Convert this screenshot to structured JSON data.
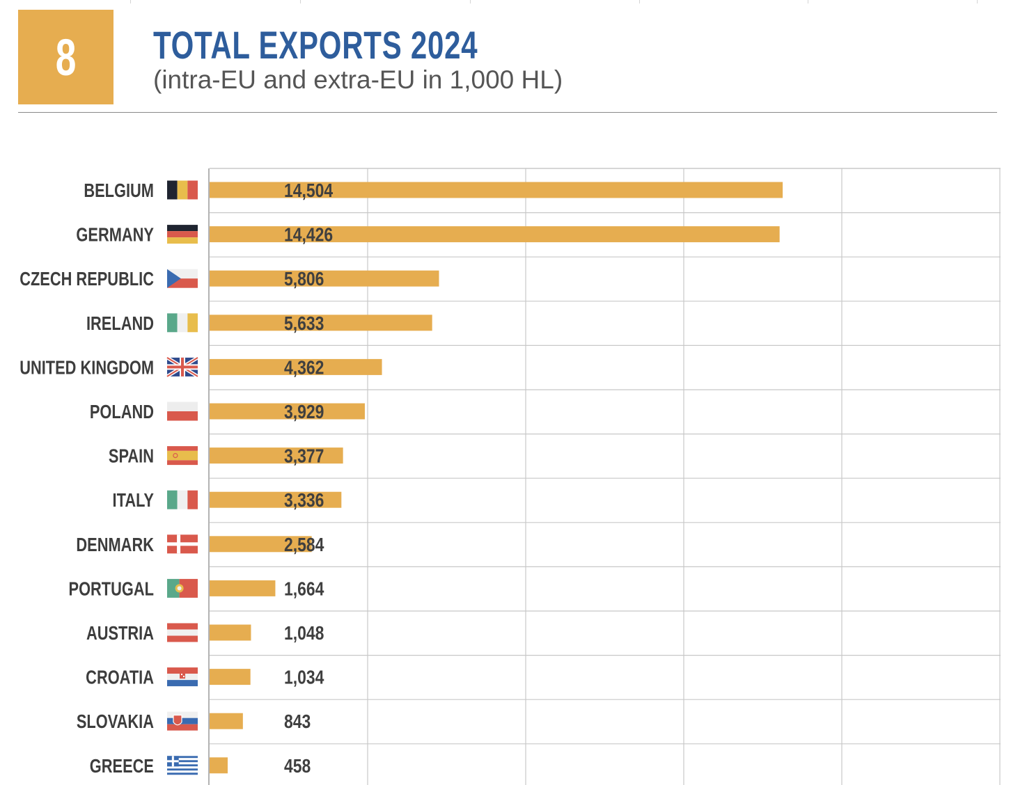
{
  "badge_number": "8",
  "colors": {
    "accent": "#e6ad50",
    "title": "#2e5d9c",
    "grid": "#c8c8c8"
  },
  "chart_data": {
    "type": "bar",
    "orientation": "horizontal",
    "title": "TOTAL EXPORTS 2024",
    "subtitle": "(intra-EU and extra-EU in 1,000 HL)",
    "xlim": [
      0,
      20000
    ],
    "grid": true,
    "categories": [
      "BELGIUM",
      "GERMANY",
      "CZECH REPUBLIC",
      "IRELAND",
      "UNITED KINGDOM",
      "POLAND",
      "SPAIN",
      "ITALY",
      "DENMARK",
      "PORTUGAL",
      "AUSTRIA",
      "CROATIA",
      "SLOVAKIA",
      "GREECE"
    ],
    "values": [
      14504,
      14426,
      5806,
      5633,
      4362,
      3929,
      3377,
      3336,
      2584,
      1664,
      1048,
      1034,
      843,
      458
    ],
    "value_labels": [
      "14,504",
      "14,426",
      "5,806",
      "5,633",
      "4,362",
      "3,929",
      "3,377",
      "3,336",
      "2,584",
      "1,664",
      "1,048",
      "1,034",
      "843",
      "458"
    ],
    "flags": [
      "belgium-flag",
      "germany-flag",
      "czech-flag",
      "ireland-flag",
      "uk-flag",
      "poland-flag",
      "spain-flag",
      "italy-flag",
      "denmark-flag",
      "portugal-flag",
      "austria-flag",
      "croatia-flag",
      "slovakia-flag",
      "greece-flag"
    ]
  }
}
